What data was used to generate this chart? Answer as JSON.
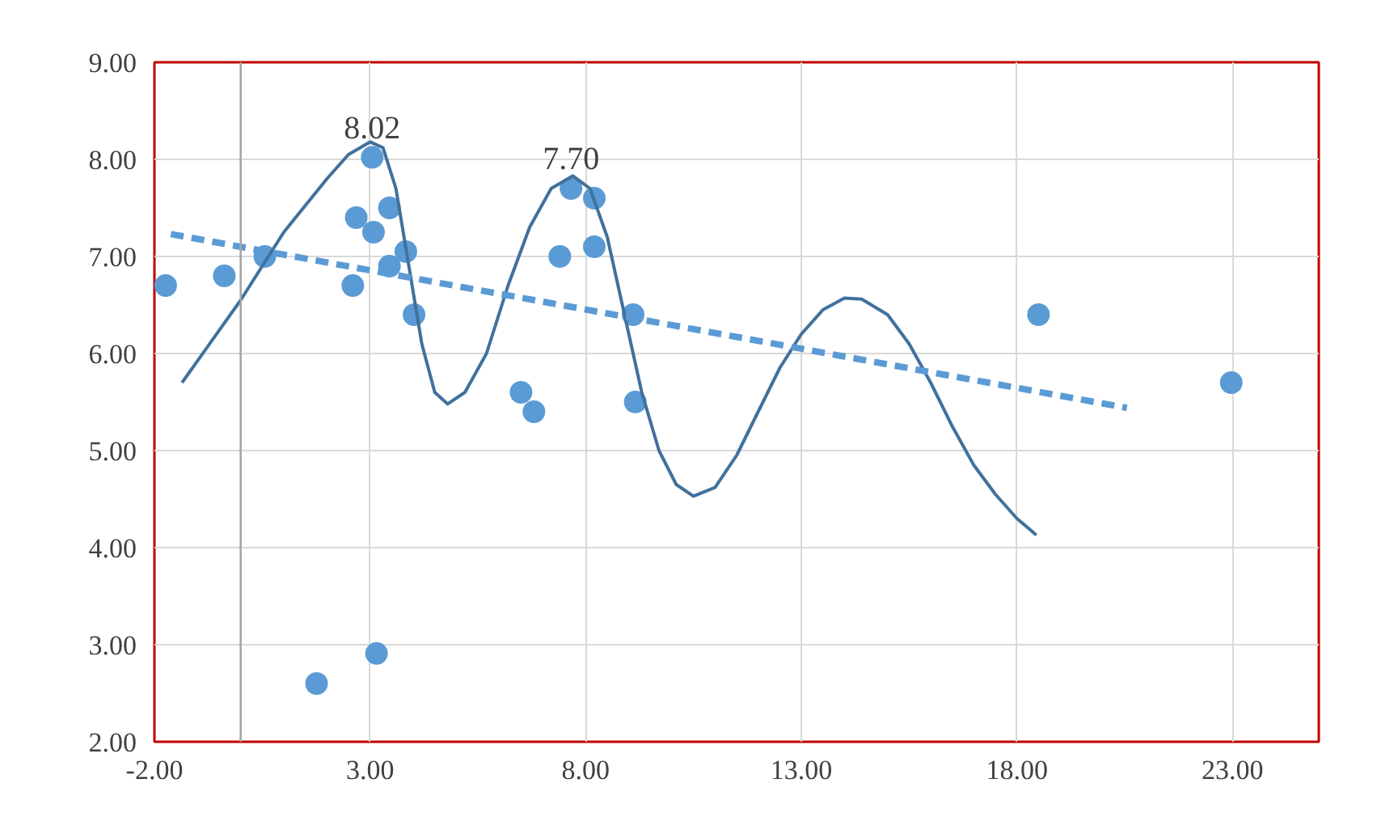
{
  "chart_data": {
    "type": "scatter",
    "xlim": [
      -2,
      25
    ],
    "ylim": [
      2,
      9
    ],
    "xticks": [
      {
        "value": -2,
        "label": "-2.00"
      },
      {
        "value": 3,
        "label": "3.00"
      },
      {
        "value": 8,
        "label": "8.00"
      },
      {
        "value": 13,
        "label": "13.00"
      },
      {
        "value": 18,
        "label": "18.00"
      },
      {
        "value": 23,
        "label": "23.00"
      }
    ],
    "yticks": [
      {
        "value": 2,
        "label": "2.00"
      },
      {
        "value": 3,
        "label": "3.00"
      },
      {
        "value": 4,
        "label": "4.00"
      },
      {
        "value": 5,
        "label": "5.00"
      },
      {
        "value": 6,
        "label": "6.00"
      },
      {
        "value": 7,
        "label": "7.00"
      },
      {
        "value": 8,
        "label": "8.00"
      },
      {
        "value": 9,
        "label": "9.00"
      }
    ],
    "grid": true,
    "series": [
      {
        "color": "#5b9bd5",
        "marker": "circle",
        "x": [
          -1.74,
          -0.38,
          0.56,
          1.76,
          2.68,
          2.6,
          3.05,
          3.08,
          3.15,
          3.45,
          3.45,
          3.83,
          4.02,
          6.5,
          6.8,
          7.4,
          7.66,
          8.2,
          8.2,
          9.1,
          9.15,
          18.5,
          22.97
        ],
        "values": [
          6.7,
          6.8,
          7.0,
          2.6,
          7.4,
          6.7,
          8.02,
          7.25,
          2.91,
          7.5,
          6.9,
          7.05,
          6.4,
          5.6,
          5.4,
          7.0,
          7.7,
          7.6,
          7.1,
          6.4,
          5.5,
          6.4,
          5.7
        ]
      },
      {
        "type": "line",
        "color": "#41719c",
        "line_style": "solid",
        "x": [
          -1.36,
          0,
          1,
          2,
          2.5,
          3,
          3.3,
          3.6,
          3.9,
          4.2,
          4.5,
          4.8,
          5.2,
          5.7,
          6.2,
          6.7,
          7.2,
          7.7,
          8.1,
          8.5,
          8.9,
          9.3,
          9.7,
          10.1,
          10.5,
          11,
          11.5,
          12,
          12.5,
          13,
          13.5,
          14,
          14.4,
          15,
          15.5,
          16,
          16.5,
          17,
          17.5,
          18,
          18.45
        ],
        "values": [
          5.7,
          6.55,
          7.25,
          7.8,
          8.05,
          8.18,
          8.12,
          7.7,
          6.9,
          6.1,
          5.6,
          5.48,
          5.6,
          6.0,
          6.7,
          7.3,
          7.7,
          7.83,
          7.7,
          7.2,
          6.4,
          5.6,
          5.0,
          4.65,
          4.53,
          4.62,
          4.95,
          5.4,
          5.85,
          6.2,
          6.45,
          6.57,
          6.56,
          6.4,
          6.1,
          5.7,
          5.25,
          4.85,
          4.55,
          4.3,
          4.13
        ]
      },
      {
        "type": "line",
        "color": "#5b9bd5",
        "line_style": "dashed",
        "x": [
          -1.62,
          20.55
        ],
        "values": [
          7.23,
          5.44
        ]
      }
    ],
    "ref_lines": [
      {
        "axis": "x",
        "value": 0,
        "color": "#a6a6a6"
      }
    ],
    "annotations": [
      {
        "text": "8.02",
        "x": 3.05,
        "y": 8.02
      },
      {
        "text": "7.70",
        "x": 7.66,
        "y": 7.7
      }
    ]
  }
}
